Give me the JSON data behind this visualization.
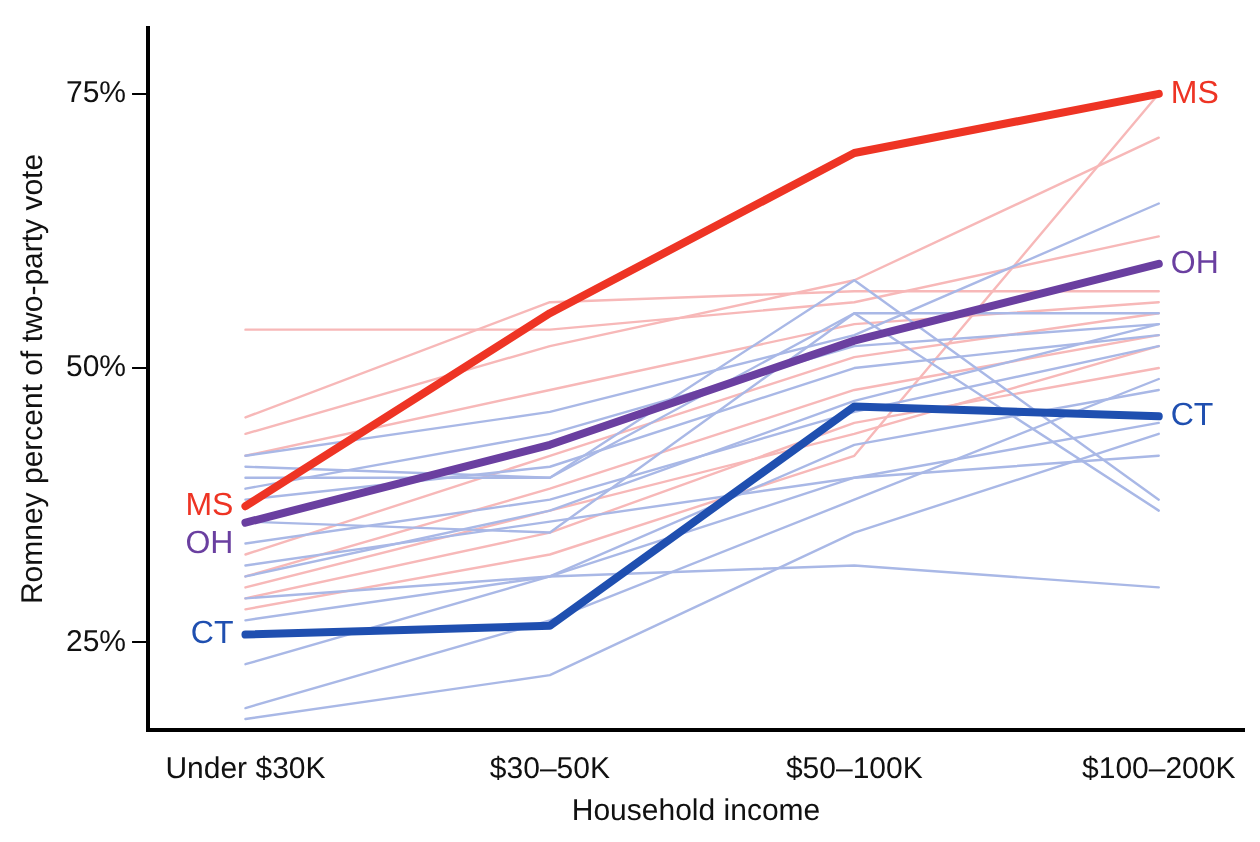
{
  "chart_data": {
    "type": "line",
    "xlabel": "Household income",
    "ylabel": "Romney percent of two-party vote",
    "categories": [
      "Under $30K",
      "$30–50K",
      "$50–100K",
      "$100–200K"
    ],
    "ylim": [
      17,
      81
    ],
    "yticks": [
      {
        "value": 25,
        "label": "25%"
      },
      {
        "value": 50,
        "label": "50%"
      },
      {
        "value": 75,
        "label": "75%"
      }
    ],
    "grid": false,
    "legend": false,
    "marker": "none",
    "series": [
      {
        "color": "#f7b8b8",
        "values": [
          53.5,
          53.5,
          56,
          62
        ]
      },
      {
        "color": "#f7b8b8",
        "values": [
          45.5,
          56,
          57,
          57
        ]
      },
      {
        "color": "#f7b8b8",
        "values": [
          44,
          52,
          58,
          71
        ]
      },
      {
        "color": "#f7b8b8",
        "values": [
          42,
          48,
          54,
          56
        ]
      },
      {
        "color": "#f7b8b8",
        "values": [
          33,
          42,
          51,
          55
        ]
      },
      {
        "color": "#f7b8b8",
        "values": [
          30,
          37,
          44,
          52
        ]
      },
      {
        "color": "#f7b8b8",
        "values": [
          28,
          33,
          42,
          75
        ]
      },
      {
        "color": "#f7b8b8",
        "values": [
          31,
          39,
          48,
          53
        ]
      },
      {
        "color": "#f7b8b8",
        "values": [
          29,
          35,
          45,
          50
        ]
      },
      {
        "color": "#a9b8e6",
        "values": [
          42,
          46,
          53,
          65
        ]
      },
      {
        "color": "#a9b8e6",
        "values": [
          41,
          40,
          58,
          38
        ]
      },
      {
        "color": "#a9b8e6",
        "values": [
          40,
          40,
          55,
          55
        ]
      },
      {
        "color": "#a9b8e6",
        "values": [
          39,
          44,
          52,
          54
        ]
      },
      {
        "color": "#a9b8e6",
        "values": [
          38,
          41,
          50,
          53
        ]
      },
      {
        "color": "#a9b8e6",
        "values": [
          34,
          38,
          46,
          52
        ]
      },
      {
        "color": "#a9b8e6",
        "values": [
          31,
          37,
          47,
          54
        ]
      },
      {
        "color": "#a9b8e6",
        "values": [
          29,
          31,
          32,
          30
        ]
      },
      {
        "color": "#a9b8e6",
        "values": [
          27,
          31,
          43,
          48
        ]
      },
      {
        "color": "#a9b8e6",
        "values": [
          23,
          31,
          40,
          45
        ]
      },
      {
        "color": "#a9b8e6",
        "values": [
          19,
          27,
          38,
          49
        ]
      },
      {
        "color": "#a9b8e6",
        "values": [
          18,
          22,
          35,
          44
        ]
      },
      {
        "color": "#a9b8e6",
        "values": [
          36,
          35,
          55,
          37
        ]
      },
      {
        "color": "#a9b8e6",
        "values": [
          32,
          36,
          40,
          42
        ]
      },
      {
        "name": "MS",
        "color": "#ee3424",
        "values": [
          37.4,
          55,
          69.6,
          75
        ]
      },
      {
        "name": "OH",
        "color": "#6a3fa0",
        "values": [
          35.9,
          43,
          52.5,
          59.5
        ]
      },
      {
        "name": "CT",
        "color": "#1f4fb0",
        "values": [
          25.7,
          26.5,
          46.5,
          45.6
        ]
      }
    ]
  }
}
